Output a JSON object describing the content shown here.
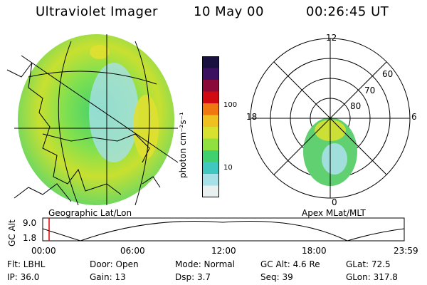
{
  "header": {
    "title": "Ultraviolet Imager",
    "date": "10 May 00",
    "time": "00:26:45 UT"
  },
  "left_panel": {
    "caption": "Geographic Lat/Lon"
  },
  "colorbar": {
    "unit_label": "photon cm⁻²s⁻¹",
    "ticks": [
      "100",
      "10"
    ],
    "colors": [
      "#1a1040",
      "#3b1060",
      "#8a0a3a",
      "#d00a10",
      "#f07810",
      "#f0c020",
      "#d8e030",
      "#90e040",
      "#40d070",
      "#40c8c0",
      "#a8e0e8",
      "#e8f0f0"
    ]
  },
  "right_panel": {
    "caption": "Apex MLat/MLT",
    "mlt_labels": {
      "top": "12",
      "left": "18",
      "right": "6",
      "bottom": "0"
    },
    "lat_labels": [
      "60",
      "70",
      "80"
    ]
  },
  "altitude_plot": {
    "ylabel": "GC Alt",
    "yticks": [
      "9.0",
      "1.8"
    ],
    "xticks": [
      "00:00",
      "06:00",
      "12:00",
      "18:00",
      "23:59"
    ],
    "cursor_color": "#e00000"
  },
  "footer": {
    "row1": {
      "flt": "Flt: LBHL",
      "door": "Door: Open",
      "mode": "Mode: Normal",
      "gcalt": "GC Alt: 4.6 Re",
      "glat": "GLat:  72.5"
    },
    "row2": {
      "ip": "IP: 36.0",
      "gain": "Gain: 13",
      "dsp": "Dsp:     3.7",
      "seq": "Seq: 39",
      "glon": "GLon: 317.8"
    }
  }
}
